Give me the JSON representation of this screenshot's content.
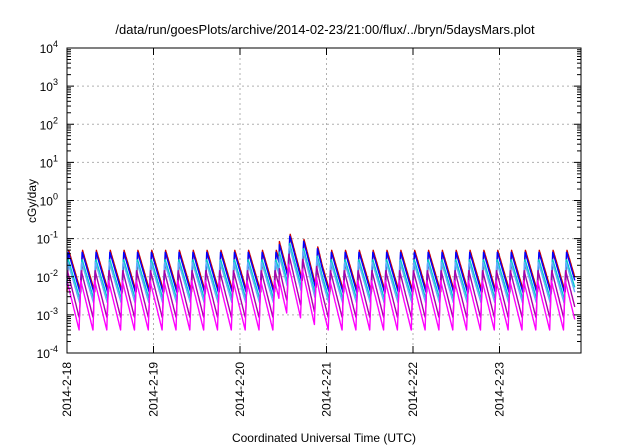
{
  "chart_data": {
    "type": "line",
    "title": "/data/run/goesPlots/archive/2014-02-23/21:00/flux/../bryn/5daysMars.plot",
    "xlabel": "Coordinated Universal Time (UTC)",
    "ylabel": "cGy/day",
    "yscale": "log",
    "ylim": [
      0.0001,
      10000
    ],
    "xlim": [
      0,
      5.87
    ],
    "grid": true,
    "x_tick_labels": [
      "2014-2-18",
      "2014-2-19",
      "2014-2-20",
      "2014-2-21",
      "2014-2-22",
      "2014-2-23"
    ],
    "y_ticks": [
      {
        "base": "10",
        "exp": "4",
        "value": 10000
      },
      {
        "base": "10",
        "exp": "3",
        "value": 1000
      },
      {
        "base": "10",
        "exp": "2",
        "value": 100
      },
      {
        "base": "10",
        "exp": "1",
        "value": 10
      },
      {
        "base": "10",
        "exp": "0",
        "value": 1
      },
      {
        "base": "10",
        "exp": "-1",
        "value": 0.1
      },
      {
        "base": "10",
        "exp": "-2",
        "value": 0.01
      },
      {
        "base": "10",
        "exp": "-3",
        "value": 0.001
      },
      {
        "base": "10",
        "exp": "-4",
        "value": 0.0001
      }
    ],
    "oscillation_period_days": 0.16,
    "series": [
      {
        "color": "#cc0000",
        "peak": 0.05,
        "trough": 0.004
      },
      {
        "color": "#0000ff",
        "peak": 0.045,
        "trough": 0.0035
      },
      {
        "color": "#00cccc",
        "peak": 0.03,
        "trough": 0.0025
      },
      {
        "color": "#66aaff",
        "peak": 0.025,
        "trough": 0.002
      },
      {
        "color": "#aa00aa",
        "peak": 0.015,
        "trough": 0.0008
      },
      {
        "color": "#ff00ff",
        "peak": 0.008,
        "trough": 0.0004
      }
    ],
    "event": {
      "x_start": 2.45,
      "x_end": 2.95,
      "factor": 3.2
    }
  }
}
